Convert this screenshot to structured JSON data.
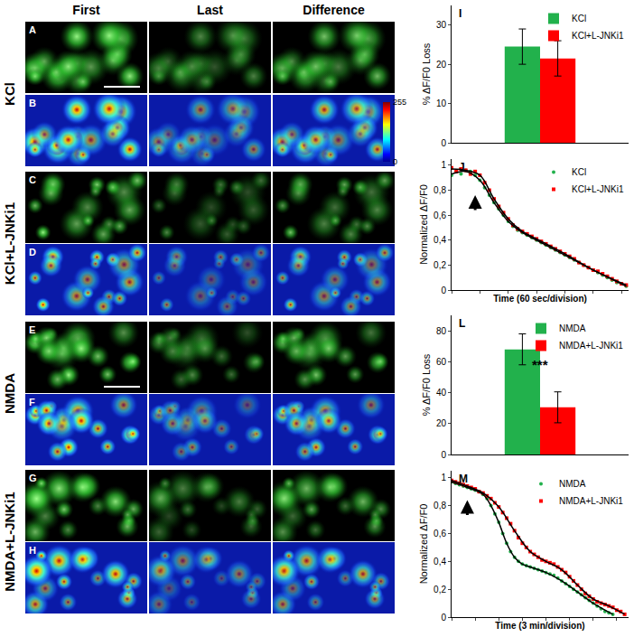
{
  "figure": {
    "columns": [
      "First",
      "Last",
      "Difference"
    ],
    "rows": [
      {
        "label": "KCl",
        "panels": [
          "A",
          "B"
        ]
      },
      {
        "label": "KCl+L-JNKi1",
        "panels": [
          "C",
          "D"
        ]
      },
      {
        "label": "NMDA",
        "panels": [
          "E",
          "F"
        ]
      },
      {
        "label": "NMDA+L-JNKi1",
        "panels": [
          "G",
          "H"
        ]
      }
    ],
    "colorbar": {
      "range": [
        0,
        255
      ],
      "ticks": [
        0,
        255
      ]
    }
  },
  "chart_data": [
    {
      "panel": "I",
      "type": "bar",
      "categories": [
        null
      ],
      "y_label": "% ΔF/F0 Loss",
      "series": [
        {
          "name": "KCl",
          "color": "#22b14c",
          "values": [
            24.5
          ],
          "error": [
            4.5
          ]
        },
        {
          "name": "KCl+L-JNKi1",
          "color": "#ff0000",
          "values": [
            21.5
          ],
          "error": [
            4.5
          ]
        }
      ],
      "ylim": [
        0,
        35
      ],
      "yticks": [
        0,
        10,
        20,
        30
      ],
      "tick_labels": "y",
      "legend": "top-right",
      "grid": false
    },
    {
      "panel": "J",
      "type": "scatter",
      "x_label": "Time (60 sec/division)",
      "y_label": "Normalized ΔF/F0",
      "series": [
        {
          "name": "KCl",
          "color": "#22b14c",
          "type": "scatter",
          "marker": "circle",
          "x": [
            0,
            10,
            20,
            30,
            40,
            50,
            60,
            70,
            80,
            90,
            100,
            110,
            120,
            130,
            140,
            150,
            160,
            170,
            180,
            190,
            200,
            210,
            220,
            230,
            240,
            250,
            260,
            270,
            280,
            290,
            300,
            310,
            320,
            330,
            340,
            350,
            360,
            370
          ],
          "values": [
            0.92,
            0.95,
            0.93,
            0.96,
            0.95,
            0.92,
            0.88,
            0.82,
            0.76,
            0.7,
            0.65,
            0.6,
            0.55,
            0.51,
            0.48,
            0.46,
            0.44,
            0.42,
            0.4,
            0.38,
            0.36,
            0.34,
            0.32,
            0.3,
            0.28,
            0.26,
            0.24,
            0.22,
            0.2,
            0.18,
            0.16,
            0.14,
            0.12,
            0.1,
            0.08,
            0.06,
            0.05,
            0.03
          ]
        },
        {
          "name": "KCl+L-JNKi1",
          "color": "#ff0000",
          "type": "scatter",
          "marker": "square",
          "x": [
            0,
            10,
            20,
            30,
            40,
            50,
            60,
            70,
            80,
            90,
            100,
            110,
            120,
            130,
            140,
            150,
            160,
            170,
            180,
            190,
            200,
            210,
            220,
            230,
            240,
            250,
            260,
            270,
            280,
            290,
            300,
            310,
            320,
            330,
            340,
            350,
            360,
            370
          ],
          "values": [
            0.98,
            0.95,
            0.97,
            0.96,
            0.93,
            0.95,
            0.92,
            0.86,
            0.8,
            0.73,
            0.67,
            0.62,
            0.57,
            0.52,
            0.49,
            0.47,
            0.45,
            0.43,
            0.41,
            0.39,
            0.37,
            0.35,
            0.33,
            0.31,
            0.29,
            0.27,
            0.25,
            0.22,
            0.2,
            0.18,
            0.16,
            0.15,
            0.13,
            0.11,
            0.09,
            0.07,
            0.05,
            0.04
          ]
        },
        {
          "color": "#000000",
          "type": "line",
          "line_style": "solid",
          "x": [
            0,
            30,
            60,
            90,
            120,
            150,
            180,
            240,
            300,
            370
          ],
          "values": [
            0.93,
            0.95,
            0.88,
            0.7,
            0.55,
            0.46,
            0.4,
            0.28,
            0.16,
            0.03
          ]
        },
        {
          "color": "#000000",
          "type": "line",
          "line_style": "solid",
          "x": [
            0,
            30,
            60,
            90,
            120,
            150,
            180,
            240,
            300,
            370
          ],
          "values": [
            0.97,
            0.96,
            0.92,
            0.73,
            0.57,
            0.47,
            0.41,
            0.29,
            0.16,
            0.04
          ]
        }
      ],
      "arrow": {
        "x": 50,
        "y": 0.76
      },
      "xlim": [
        0,
        375
      ],
      "xticks": [
        0,
        60,
        120,
        180,
        240,
        300,
        360
      ],
      "ylim": [
        0,
        1.05
      ],
      "yticks": [
        0,
        {
          "value": 0.2,
          "label": "0,2"
        },
        {
          "value": 0.4,
          "label": "0,4"
        },
        {
          "value": 0.6,
          "label": "0,6"
        },
        {
          "value": 0.8,
          "label": "0,8"
        },
        1
      ],
      "tick_labels": "y",
      "legend": "top-right",
      "grid": false
    },
    {
      "panel": "L",
      "type": "bar",
      "categories": [
        null
      ],
      "y_label": "% ΔF/F0 Loss",
      "series": [
        {
          "name": "NMDA",
          "color": "#22b14c",
          "values": [
            68
          ],
          "error": [
            10
          ]
        },
        {
          "name": "NMDA+L-JNKi1",
          "color": "#ff0000",
          "values": [
            30.5
          ],
          "error": [
            10
          ]
        }
      ],
      "annotations": [
        {
          "text": "***",
          "x": 0,
          "y": 58
        }
      ],
      "ylim": [
        0,
        90
      ],
      "yticks": [
        0,
        20,
        40,
        60,
        80
      ],
      "tick_labels": "y",
      "legend": "top-right",
      "grid": false
    },
    {
      "panel": "M",
      "type": "scatter",
      "x_label": "Time (3 min/division)",
      "y_label": "Normalized ΔF/F0",
      "series": [
        {
          "name": "NMDA",
          "color": "#22b14c",
          "type": "scatter",
          "marker": "circle",
          "x": [
            0,
            0.5,
            1,
            1.5,
            2,
            2.5,
            3,
            3.5,
            4,
            4.5,
            5,
            5.5,
            6,
            6.5,
            7,
            7.5,
            8,
            8.5,
            9,
            9.5,
            10,
            10.5,
            11,
            11.5,
            12,
            12.5,
            13,
            13.5,
            14,
            14.5,
            15,
            15.5,
            16,
            16.5,
            17,
            17.5,
            18,
            18.5,
            19,
            19.5,
            20,
            20.5
          ],
          "values": [
            0.97,
            0.96,
            0.95,
            0.94,
            0.93,
            0.92,
            0.91,
            0.9,
            0.88,
            0.85,
            0.8,
            0.74,
            0.68,
            0.6,
            0.53,
            0.47,
            0.43,
            0.4,
            0.38,
            0.37,
            0.36,
            0.35,
            0.34,
            0.33,
            0.32,
            0.31,
            0.3,
            0.28,
            0.26,
            0.24,
            0.22,
            0.2,
            0.18,
            0.16,
            0.14,
            0.12,
            0.1,
            0.08,
            0.06,
            0.04,
            0.03,
            0.02
          ]
        },
        {
          "name": "NMDA+L-JNKi1",
          "color": "#ff0000",
          "type": "scatter",
          "marker": "square",
          "x": [
            0,
            0.5,
            1,
            1.5,
            2,
            2.5,
            3,
            3.5,
            4,
            4.5,
            5,
            5.5,
            6,
            6.5,
            7,
            7.5,
            8,
            8.5,
            9,
            9.5,
            10,
            10.5,
            11,
            11.5,
            12,
            12.5,
            13,
            13.5,
            14,
            14.5,
            15,
            15.5,
            16,
            16.5,
            17,
            17.5,
            18,
            18.5,
            19,
            19.5,
            20,
            20.5,
            21,
            21.5,
            22
          ],
          "values": [
            0.98,
            0.97,
            0.96,
            0.95,
            0.94,
            0.93,
            0.92,
            0.9,
            0.89,
            0.87,
            0.85,
            0.82,
            0.79,
            0.75,
            0.71,
            0.67,
            0.62,
            0.57,
            0.53,
            0.5,
            0.47,
            0.45,
            0.43,
            0.41,
            0.4,
            0.39,
            0.38,
            0.36,
            0.34,
            0.32,
            0.29,
            0.26,
            0.23,
            0.2,
            0.17,
            0.15,
            0.13,
            0.11,
            0.1,
            0.09,
            0.08,
            0.07,
            0.05,
            0.04,
            0.02
          ]
        },
        {
          "color": "#000000",
          "type": "line",
          "line_style": "solid",
          "x": [
            0,
            2,
            4,
            5,
            6,
            7,
            8,
            9,
            10,
            12,
            14,
            16,
            18,
            20.5
          ],
          "values": [
            0.97,
            0.93,
            0.88,
            0.8,
            0.68,
            0.53,
            0.43,
            0.38,
            0.36,
            0.32,
            0.26,
            0.18,
            0.1,
            0.02
          ]
        },
        {
          "color": "#000000",
          "type": "line",
          "line_style": "solid",
          "x": [
            0,
            2,
            4,
            6,
            8,
            10,
            12,
            14,
            16,
            18,
            20,
            22
          ],
          "values": [
            0.98,
            0.94,
            0.89,
            0.79,
            0.62,
            0.47,
            0.4,
            0.34,
            0.23,
            0.13,
            0.08,
            0.02
          ]
        }
      ],
      "arrow": {
        "x": 2,
        "y": 0.84
      },
      "xlim": [
        0,
        22.5
      ],
      "xticks": [
        0,
        3,
        6,
        9,
        12,
        15,
        18,
        21
      ],
      "ylim": [
        0,
        1.05
      ],
      "yticks": [
        0,
        {
          "value": 0.2,
          "label": "0,2"
        },
        {
          "value": 0.4,
          "label": "0,4"
        },
        {
          "value": 0.6,
          "label": "0,6"
        },
        {
          "value": 0.8,
          "label": "0,8"
        },
        1
      ],
      "tick_labels": "y",
      "legend": "top-right",
      "grid": false
    }
  ]
}
